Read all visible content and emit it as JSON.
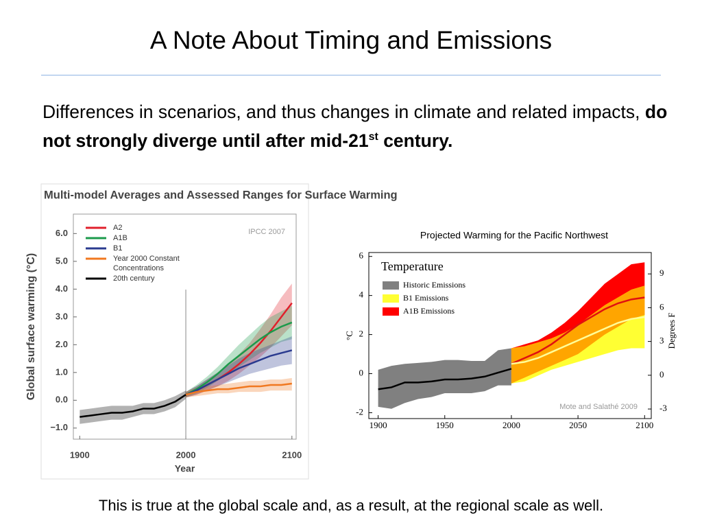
{
  "slide": {
    "title": "A Note About Timing and Emissions",
    "body": {
      "text": "Differences in scenarios, and thus changes in climate and related impacts, ",
      "bold": "do not strongly diverge until after mid-21",
      "sup": "st",
      "bold_end": " century."
    },
    "footer": "This is true at the global scale and, as a result, at the regional scale as well."
  },
  "chart_data": [
    {
      "type": "line",
      "title": "Multi-model Averages and Assessed Ranges for Surface Warming",
      "annotation": "IPCC 2007",
      "xlabel": "Year",
      "ylabel": "Global surface warming (°C)",
      "xlim": [
        1894,
        2104
      ],
      "ylim": [
        -1.4,
        6.7
      ],
      "xticks": [
        1900,
        2000,
        2100
      ],
      "yticks": [
        {
          "value": -1,
          "label": "−1.0"
        },
        {
          "value": 0,
          "label": "0.0"
        },
        {
          "value": 1,
          "label": "1.0"
        },
        {
          "value": 2,
          "label": "2.0"
        },
        {
          "value": 3,
          "label": "3.0"
        },
        {
          "value": 4,
          "label": "4.0"
        },
        {
          "value": 5,
          "label": "5.0"
        },
        {
          "value": 6,
          "label": "6.0"
        }
      ],
      "vline": 2000,
      "legend": "upper left",
      "series": [
        {
          "name": "A2",
          "color": "#e0202c",
          "x": [
            2000,
            2010,
            2020,
            2030,
            2040,
            2050,
            2060,
            2070,
            2080,
            2090,
            2100
          ],
          "values": [
            0.2,
            0.35,
            0.55,
            0.75,
            1.0,
            1.3,
            1.65,
            2.05,
            2.5,
            3.0,
            3.5
          ],
          "low": [
            0.1,
            0.2,
            0.35,
            0.5,
            0.7,
            0.95,
            1.25,
            1.55,
            1.9,
            2.3,
            2.7
          ],
          "high": [
            0.3,
            0.5,
            0.75,
            1.0,
            1.3,
            1.65,
            2.05,
            2.55,
            3.1,
            3.7,
            4.2
          ]
        },
        {
          "name": "A1B",
          "color": "#1b9a4b",
          "x": [
            2000,
            2010,
            2020,
            2030,
            2040,
            2050,
            2060,
            2070,
            2080,
            2090,
            2100
          ],
          "values": [
            0.2,
            0.4,
            0.65,
            0.95,
            1.3,
            1.6,
            1.9,
            2.2,
            2.45,
            2.65,
            2.8
          ],
          "low": [
            0.1,
            0.25,
            0.45,
            0.7,
            0.95,
            1.2,
            1.45,
            1.7,
            1.9,
            2.1,
            2.2
          ],
          "high": [
            0.3,
            0.55,
            0.85,
            1.2,
            1.6,
            2.0,
            2.35,
            2.7,
            3.0,
            3.2,
            3.4
          ]
        },
        {
          "name": "B1",
          "color": "#2a3a8f",
          "x": [
            2000,
            2010,
            2020,
            2030,
            2040,
            2050,
            2060,
            2070,
            2080,
            2090,
            2100
          ],
          "values": [
            0.2,
            0.35,
            0.55,
            0.75,
            0.95,
            1.15,
            1.3,
            1.45,
            1.6,
            1.7,
            1.8
          ],
          "low": [
            0.1,
            0.2,
            0.35,
            0.5,
            0.65,
            0.8,
            0.95,
            1.05,
            1.15,
            1.25,
            1.3
          ],
          "high": [
            0.3,
            0.5,
            0.75,
            1.0,
            1.25,
            1.5,
            1.7,
            1.85,
            2.0,
            2.15,
            2.3
          ]
        },
        {
          "name": "Year 2000 Constant Concentrations",
          "color": "#f07820",
          "x": [
            2000,
            2010,
            2020,
            2030,
            2040,
            2050,
            2060,
            2070,
            2080,
            2090,
            2100
          ],
          "values": [
            0.2,
            0.3,
            0.35,
            0.4,
            0.4,
            0.45,
            0.5,
            0.5,
            0.55,
            0.55,
            0.6
          ],
          "low": [
            0.1,
            0.15,
            0.2,
            0.25,
            0.25,
            0.3,
            0.3,
            0.3,
            0.35,
            0.35,
            0.35
          ],
          "high": [
            0.3,
            0.45,
            0.5,
            0.55,
            0.6,
            0.65,
            0.7,
            0.7,
            0.75,
            0.75,
            0.8
          ]
        },
        {
          "name": "20th century",
          "color": "#000000",
          "x": [
            1900,
            1910,
            1920,
            1930,
            1940,
            1950,
            1960,
            1970,
            1980,
            1990,
            2000
          ],
          "values": [
            -0.6,
            -0.55,
            -0.5,
            -0.45,
            -0.45,
            -0.4,
            -0.3,
            -0.3,
            -0.2,
            -0.05,
            0.2
          ],
          "low": [
            -0.85,
            -0.8,
            -0.75,
            -0.7,
            -0.7,
            -0.6,
            -0.5,
            -0.5,
            -0.4,
            -0.25,
            0.05
          ],
          "high": [
            -0.35,
            -0.3,
            -0.25,
            -0.2,
            -0.2,
            -0.2,
            -0.1,
            -0.1,
            0.0,
            0.15,
            0.35
          ]
        }
      ]
    },
    {
      "type": "area",
      "title": "Projected Warming for the Pacific Northwest",
      "legend_title": "Temperature",
      "annotation": "Mote and Salathé 2009",
      "ylabel": "°C",
      "y2label": "Degrees F",
      "xlim": [
        1893,
        2105
      ],
      "ylim": [
        -2.3,
        6.2
      ],
      "y2lim": [
        -3.85,
        10.9
      ],
      "xticks": [
        1900,
        1950,
        2000,
        2050,
        2100
      ],
      "yticks": [
        -2,
        0,
        2,
        4,
        6
      ],
      "y2ticks": [
        -3,
        0,
        3,
        6,
        9
      ],
      "overlap_color": "#ffa500",
      "series": [
        {
          "name": "Historic Emissions",
          "color": "#808080",
          "x": [
            1900,
            1910,
            1920,
            1930,
            1940,
            1950,
            1960,
            1970,
            1980,
            1990,
            2000
          ],
          "low": [
            -1.7,
            -1.8,
            -1.5,
            -1.3,
            -1.2,
            -1.0,
            -1.0,
            -1.0,
            -0.9,
            -0.6,
            -0.6
          ],
          "high": [
            0.2,
            0.4,
            0.5,
            0.55,
            0.6,
            0.7,
            0.7,
            0.65,
            0.65,
            1.2,
            1.3
          ],
          "mean": [
            -0.8,
            -0.7,
            -0.45,
            -0.45,
            -0.4,
            -0.3,
            -0.3,
            -0.25,
            -0.15,
            0.05,
            0.25
          ],
          "mean_color": "#000000"
        },
        {
          "name": "B1 Emissions",
          "color": "#ffff33",
          "x": [
            2000,
            2010,
            2020,
            2030,
            2040,
            2050,
            2060,
            2070,
            2080,
            2090,
            2100
          ],
          "low": [
            -0.5,
            -0.4,
            -0.1,
            0.2,
            0.4,
            0.6,
            0.8,
            1.0,
            1.2,
            1.3,
            1.3
          ],
          "high": [
            1.3,
            1.4,
            1.6,
            1.8,
            2.1,
            2.5,
            3.0,
            3.5,
            3.9,
            4.3,
            4.5
          ],
          "mean": [
            0.5,
            0.6,
            0.8,
            1.1,
            1.4,
            1.7,
            2.0,
            2.3,
            2.6,
            2.8,
            2.9
          ],
          "mean_color": "#ffff99"
        },
        {
          "name": "A1B Emissions",
          "color": "#ff0000",
          "x": [
            2000,
            2010,
            2020,
            2030,
            2040,
            2050,
            2060,
            2070,
            2080,
            2090,
            2100
          ],
          "low": [
            -0.5,
            -0.2,
            0.1,
            0.4,
            0.7,
            1.0,
            1.5,
            2.0,
            2.4,
            2.8,
            3.0
          ],
          "high": [
            1.3,
            1.5,
            1.7,
            2.1,
            2.6,
            3.2,
            3.9,
            4.6,
            5.1,
            5.6,
            5.7
          ],
          "mean": [
            0.5,
            0.8,
            1.1,
            1.5,
            2.0,
            2.5,
            2.9,
            3.3,
            3.6,
            3.8,
            3.9
          ],
          "mean_color": "#e01010"
        }
      ]
    }
  ]
}
